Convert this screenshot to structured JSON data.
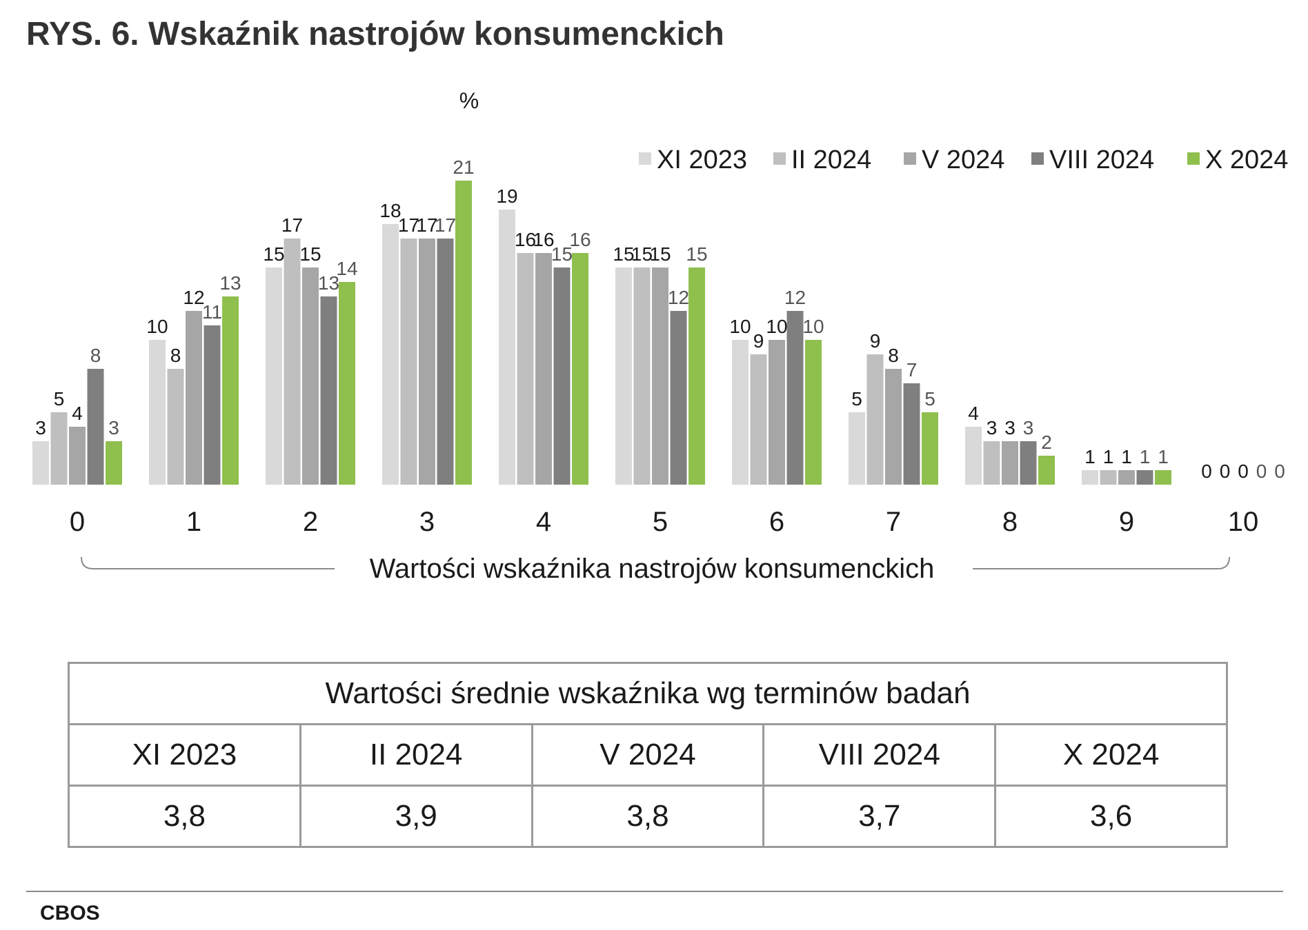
{
  "title": "RYS. 6. Wskaźnik nastrojów konsumenckich",
  "chart_data": {
    "type": "bar",
    "unit_label": "%",
    "xlabel": "Wartości wskaźnika nastrojów konsumenckich",
    "categories": [
      "0",
      "1",
      "2",
      "3",
      "4",
      "5",
      "6",
      "7",
      "8",
      "9",
      "10"
    ],
    "ylim": [
      0,
      22
    ],
    "legend_position": "top-right",
    "grid": false,
    "series": [
      {
        "name": "XI 2023",
        "color": "#d9d9d9",
        "values": [
          3,
          10,
          15,
          18,
          19,
          15,
          10,
          5,
          4,
          1,
          0
        ]
      },
      {
        "name": "II 2024",
        "color": "#bfbfbf",
        "values": [
          5,
          8,
          17,
          17,
          16,
          15,
          9,
          9,
          3,
          1,
          0
        ]
      },
      {
        "name": "V 2024",
        "color": "#a6a6a6",
        "values": [
          4,
          12,
          15,
          17,
          16,
          15,
          10,
          8,
          3,
          1,
          0
        ]
      },
      {
        "name": "VIII 2024",
        "color": "#7f7f7f",
        "values": [
          8,
          11,
          13,
          17,
          15,
          12,
          12,
          7,
          3,
          1,
          0
        ]
      },
      {
        "name": "X 2024",
        "color": "#8fbf4d",
        "values": [
          3,
          13,
          14,
          21,
          16,
          15,
          10,
          5,
          2,
          1,
          0
        ]
      }
    ]
  },
  "summary": {
    "heading": "Wartości średnie wskaźnika wg terminów badań",
    "columns": [
      "XI 2023",
      "II 2024",
      "V 2024",
      "VIII 2024",
      "X 2024"
    ],
    "values": [
      "3,8",
      "3,9",
      "3,8",
      "3,7",
      "3,6"
    ]
  },
  "source": "CBOS"
}
